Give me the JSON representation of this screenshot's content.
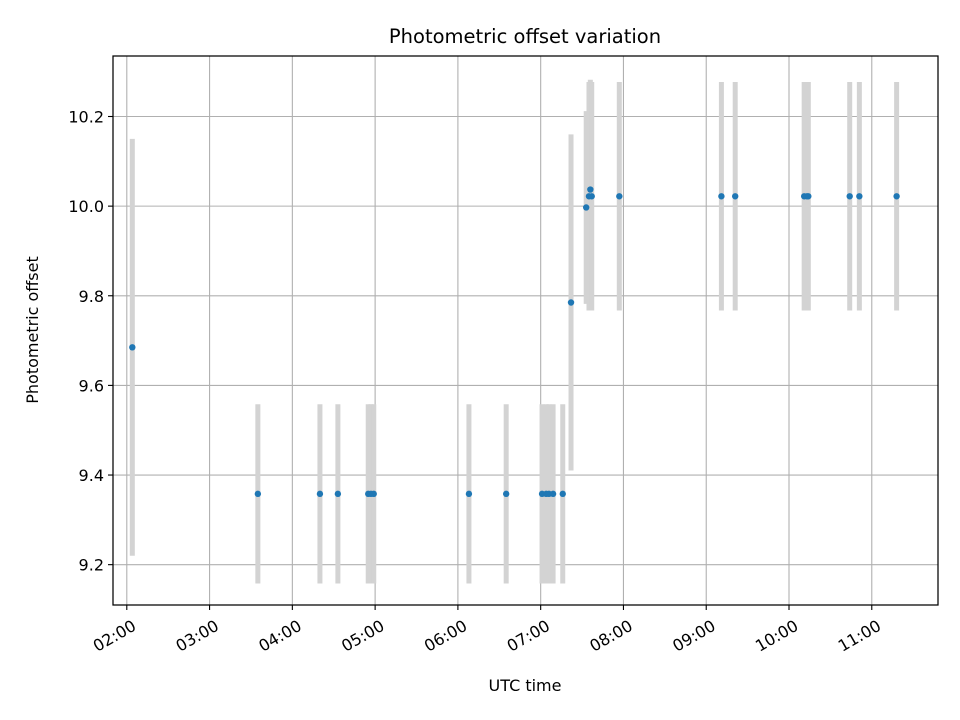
{
  "chart_data": {
    "type": "scatter",
    "title": "Photometric offset variation",
    "xlabel": "UTC time",
    "ylabel": "Photometric offset",
    "grid": true,
    "xlim": [
      "01:50",
      "11:48"
    ],
    "ylim": [
      9.11,
      10.335
    ],
    "x_ticks": [
      "02:00",
      "03:00",
      "04:00",
      "05:00",
      "06:00",
      "07:00",
      "08:00",
      "09:00",
      "10:00",
      "11:00"
    ],
    "y_ticks": [
      "9.2",
      "9.4",
      "9.6",
      "9.8",
      "10.0",
      "10.2"
    ],
    "y_tick_values": [
      9.2,
      9.4,
      9.6,
      9.8,
      10.0,
      10.2
    ],
    "x_tick_values": [
      "02:00",
      "03:00",
      "04:00",
      "05:00",
      "06:00",
      "07:00",
      "08:00",
      "09:00",
      "10:00",
      "11:00"
    ],
    "colors": {
      "marker": "#1f77b4",
      "errorbar": "#d3d3d3",
      "grid": "#b0b0b0"
    },
    "points": [
      {
        "x": "02:04",
        "y": 9.685,
        "yerr": 0.465
      },
      {
        "x": "03:35",
        "y": 9.358,
        "yerr": 0.2
      },
      {
        "x": "04:20",
        "y": 9.358,
        "yerr": 0.2
      },
      {
        "x": "04:33",
        "y": 9.358,
        "yerr": 0.2
      },
      {
        "x": "04:55",
        "y": 9.358,
        "yerr": 0.2
      },
      {
        "x": "04:57",
        "y": 9.358,
        "yerr": 0.2
      },
      {
        "x": "04:59",
        "y": 9.358,
        "yerr": 0.2
      },
      {
        "x": "06:08",
        "y": 9.358,
        "yerr": 0.2
      },
      {
        "x": "06:35",
        "y": 9.358,
        "yerr": 0.2
      },
      {
        "x": "07:01",
        "y": 9.358,
        "yerr": 0.2
      },
      {
        "x": "07:04",
        "y": 9.358,
        "yerr": 0.2
      },
      {
        "x": "07:06",
        "y": 9.358,
        "yerr": 0.2
      },
      {
        "x": "07:09",
        "y": 9.358,
        "yerr": 0.2
      },
      {
        "x": "07:16",
        "y": 9.358,
        "yerr": 0.2
      },
      {
        "x": "07:22",
        "y": 9.785,
        "yerr": 0.375
      },
      {
        "x": "07:33",
        "y": 9.997,
        "yerr": 0.215
      },
      {
        "x": "07:35",
        "y": 10.022,
        "yerr": 0.255
      },
      {
        "x": "07:36",
        "y": 10.037,
        "yerr": 0.245
      },
      {
        "x": "07:37",
        "y": 10.022,
        "yerr": 0.255
      },
      {
        "x": "07:57",
        "y": 10.022,
        "yerr": 0.255
      },
      {
        "x": "09:11",
        "y": 10.022,
        "yerr": 0.255
      },
      {
        "x": "09:21",
        "y": 10.022,
        "yerr": 0.255
      },
      {
        "x": "10:11",
        "y": 10.022,
        "yerr": 0.255
      },
      {
        "x": "10:13",
        "y": 10.022,
        "yerr": 0.255
      },
      {
        "x": "10:14",
        "y": 10.022,
        "yerr": 0.255
      },
      {
        "x": "10:44",
        "y": 10.022,
        "yerr": 0.255
      },
      {
        "x": "10:51",
        "y": 10.022,
        "yerr": 0.255
      },
      {
        "x": "11:18",
        "y": 10.022,
        "yerr": 0.255
      }
    ]
  }
}
